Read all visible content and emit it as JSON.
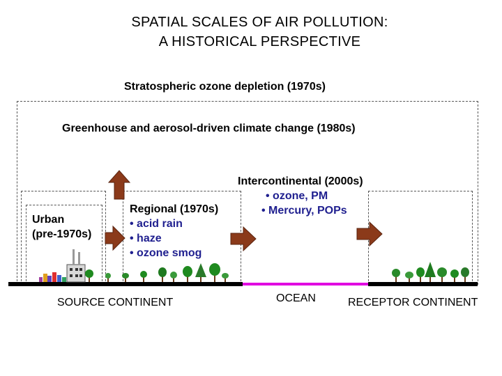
{
  "title": {
    "line1": "SPATIAL SCALES OF AIR POLLUTION:",
    "line2": "A HISTORICAL PERSPECTIVE"
  },
  "scales": {
    "stratospheric": "Stratospheric ozone depletion (1970s)",
    "greenhouse": "Greenhouse and aerosol-driven climate change (1980s)",
    "urban": {
      "line1": "Urban",
      "line2": "(pre-1970s)"
    },
    "regional": {
      "heading": "Regional (1970s)",
      "bullets": [
        "• acid rain",
        "• haze",
        "• ozone smog"
      ]
    },
    "intercontinental": {
      "heading": "Intercontinental (2000s)",
      "bullets": [
        "• ozone, PM",
        "• Mercury, POPs"
      ]
    }
  },
  "ground": {
    "source": "SOURCE CONTINENT",
    "ocean": "OCEAN",
    "receptor": "RECEPTOR CONTINENT"
  },
  "colors": {
    "arrow": "#8B3A1A",
    "ocean": "#e000e0",
    "ground": "#000000",
    "tree": "#1f8a1f",
    "bullet_text": "#1f1f8f"
  },
  "icons": [
    "factory-icon",
    "tree-icon",
    "arrow-up-icon",
    "arrow-right-icon"
  ]
}
